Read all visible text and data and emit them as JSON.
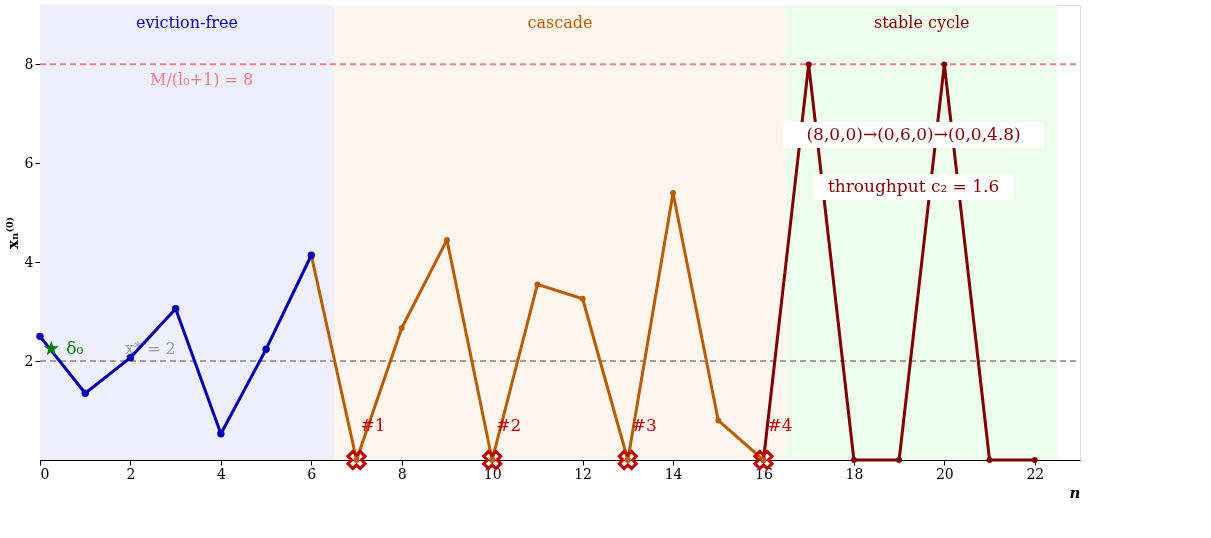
{
  "chart_data": {
    "type": "line",
    "xlabel": "n",
    "ylabel": "xₙ⁽⁰⁾",
    "xlim": [
      0,
      23
    ],
    "ylim": [
      0,
      9.2
    ],
    "xticks": [
      0,
      2,
      4,
      6,
      8,
      10,
      12,
      14,
      16,
      18,
      20,
      22
    ],
    "yticks": [
      2,
      4,
      6,
      8
    ],
    "grid": false,
    "marker": "circle",
    "line_style": "solid",
    "series": [
      {
        "color": "#0000b0",
        "x": [
          0,
          1,
          2,
          3,
          4,
          5,
          6
        ],
        "values": [
          2.5,
          1.35,
          2.07,
          3.06,
          0.53,
          2.24,
          4.14
        ]
      },
      {
        "color": "#b85c00",
        "x": [
          6,
          7,
          8,
          9,
          10,
          11,
          12,
          13,
          14,
          15,
          16
        ],
        "values": [
          4.14,
          0,
          2.67,
          4.45,
          0,
          3.55,
          3.26,
          0,
          5.4,
          0.8,
          0
        ]
      },
      {
        "color": "#800000",
        "x": [
          16,
          17,
          18,
          19,
          20,
          21,
          22
        ],
        "values": [
          0,
          8,
          0,
          0,
          8,
          0,
          0
        ]
      },
      {
        "type": "scatter",
        "marker": "cross",
        "color": "#c00000",
        "x": [
          7,
          10,
          13,
          16
        ],
        "values": [
          0,
          0,
          0,
          0
        ]
      },
      {
        "type": "scatter",
        "marker": "star",
        "color": "#008000",
        "x": [
          0.25
        ],
        "values": [
          2.25
        ]
      }
    ],
    "bands": [
      {
        "axis": "x",
        "from": 0,
        "to": 6.5,
        "label": "eviction-free",
        "color": "#eeeefd"
      },
      {
        "axis": "x",
        "from": 6.5,
        "to": 16.5,
        "label": "cascade",
        "color": "#fef5ee"
      },
      {
        "axis": "x",
        "from": 16.5,
        "to": 22.5,
        "label": "stable cycle",
        "color": "#ecfdec"
      }
    ],
    "ref_lines": [
      {
        "axis": "y",
        "value": 8,
        "label": "M/(l₀+1) = 8",
        "color": "#f08080",
        "line_style": "dashed"
      },
      {
        "axis": "y",
        "value": 2,
        "label": "x* = 2",
        "color": "#a0a0a0",
        "line_style": "dashed"
      }
    ],
    "annotations": [
      {
        "text": "δ₀",
        "x": 0.25,
        "y": 2.25
      },
      {
        "text": "#1",
        "x": 7,
        "y": 0
      },
      {
        "text": "#2",
        "x": 10,
        "y": 0
      },
      {
        "text": "#3",
        "x": 13,
        "y": 0
      },
      {
        "text": "#4",
        "x": 16,
        "y": 0
      },
      "(8,0,0)→(0,6,0)→(0,0,4.8)",
      "throughput c₂ = 1.6"
    ]
  }
}
